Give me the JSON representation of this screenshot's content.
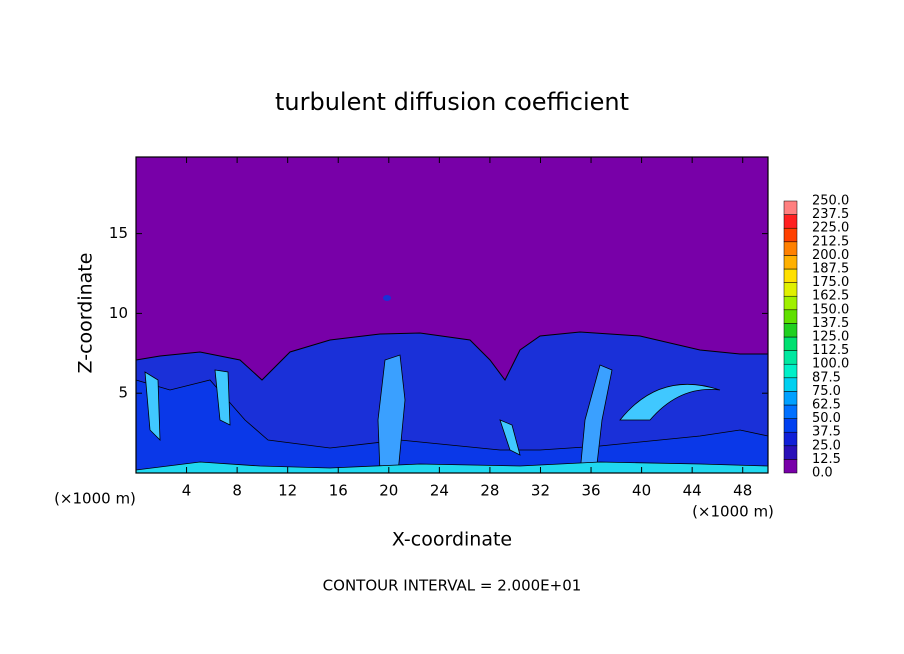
{
  "chart_data": {
    "type": "contour",
    "title": "turbulent diffusion coefficient",
    "xlabel": "X-coordinate",
    "ylabel": "Z-coordinate",
    "x_unit": "(×1000 m)",
    "x_unit_right": "(×1000 m)",
    "note": "CONTOUR INTERVAL = 2.000E+01",
    "xlim": [
      0,
      50
    ],
    "ylim": [
      0,
      19.8
    ],
    "xticks": [
      4,
      8,
      12,
      16,
      20,
      24,
      28,
      32,
      36,
      40,
      44,
      48
    ],
    "yticks": [
      5,
      10,
      15
    ],
    "colorbar": {
      "levels": [
        {
          "value": 0,
          "label": "0.0"
        },
        12.5,
        {
          "value": 25,
          "label": "25.0"
        },
        37.5,
        {
          "value": 50,
          "label": "50.0"
        },
        62.5,
        {
          "value": 75,
          "label": "75.0"
        },
        87.5,
        {
          "value": 100,
          "label": "100.0"
        },
        112.5,
        {
          "value": 125,
          "label": "125.0"
        },
        137.5,
        {
          "value": 150,
          "label": "150.0"
        },
        162.5,
        {
          "value": 175,
          "label": "175.0"
        },
        187.5,
        {
          "value": 200,
          "label": "200.0"
        },
        212.5,
        {
          "value": 225,
          "label": "225.0"
        },
        237.5,
        {
          "value": 250,
          "label": "250.0"
        }
      ],
      "colors": [
        "#7800a8",
        "#2a10b8",
        "#1020d8",
        "#0040f0",
        "#0070ff",
        "#00a0ff",
        "#00d0f0",
        "#00f0c8",
        "#00e8a0",
        "#00e070",
        "#20d020",
        "#60e000",
        "#a0f000",
        "#e0f000",
        "#ffe000",
        "#ffb000",
        "#ff8000",
        "#ff4000",
        "#ff2020",
        "#ff8080"
      ]
    }
  }
}
